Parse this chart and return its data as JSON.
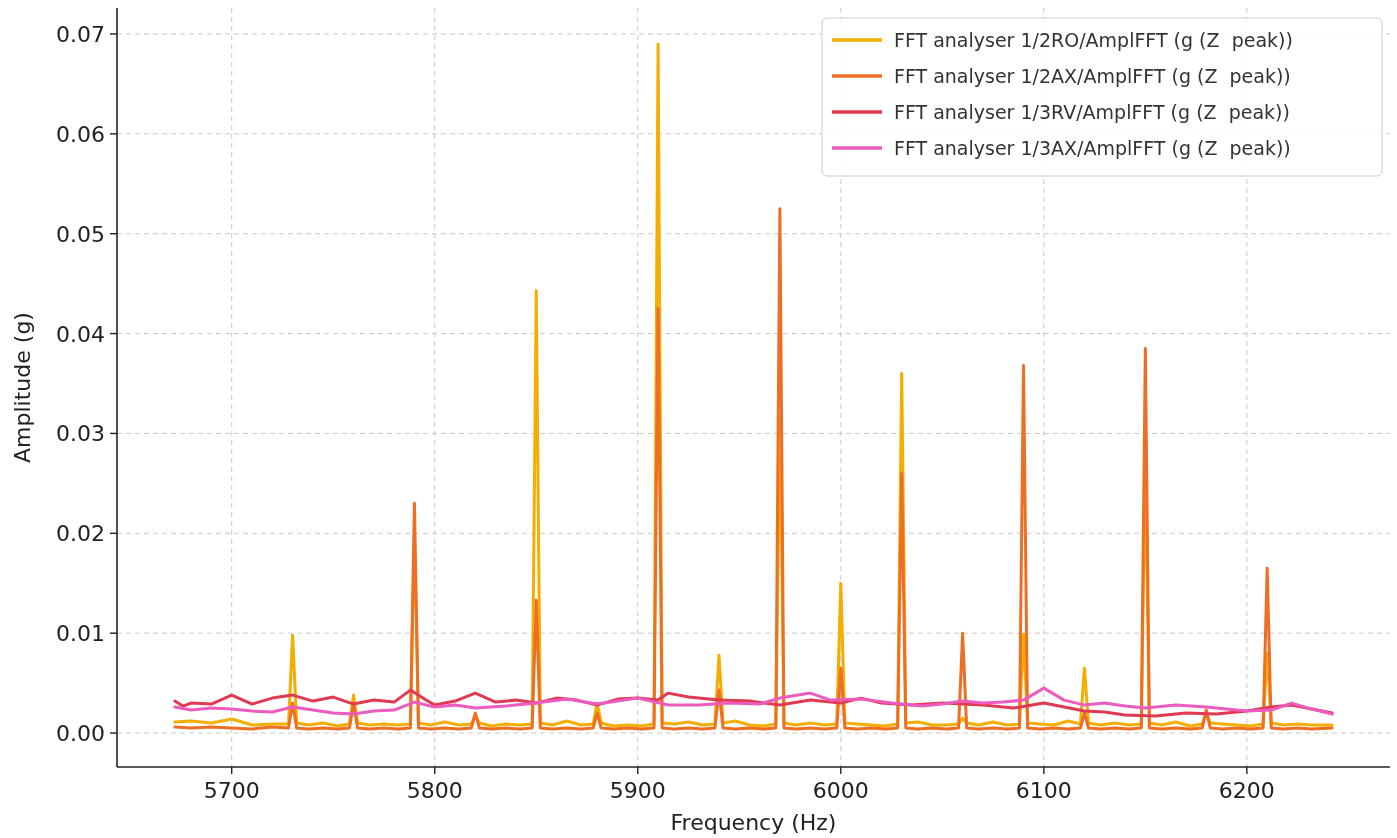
{
  "chart_data": {
    "type": "line",
    "xlabel": "Frequency (Hz)",
    "ylabel": "Amplitude (g)",
    "xlim": [
      5643.5,
      6270.5
    ],
    "xticks": [
      5700,
      5800,
      5900,
      6000,
      6100,
      6200
    ],
    "ylim": [
      -0.0034,
      0.0726
    ],
    "yticks": [
      {
        "value": 0,
        "label": "0.00"
      },
      {
        "value": 0.01,
        "label": "0.01"
      },
      {
        "value": 0.02,
        "label": "0.02"
      },
      {
        "value": 0.03,
        "label": "0.03"
      },
      {
        "value": 0.04,
        "label": "0.04"
      },
      {
        "value": 0.05,
        "label": "0.05"
      },
      {
        "value": 0.06,
        "label": "0.06"
      },
      {
        "value": 0.07,
        "label": "0.07"
      }
    ],
    "grid": true,
    "legend": "top right",
    "line_style": "solid",
    "marker": "none",
    "x": [
      5672,
      5680,
      5690,
      5700,
      5710,
      5720,
      5728,
      5730,
      5732,
      5738,
      5745,
      5752,
      5758,
      5760,
      5762,
      5768,
      5775,
      5782,
      5788,
      5790,
      5792,
      5798,
      5805,
      5812,
      5818,
      5820,
      5822,
      5828,
      5835,
      5842,
      5848,
      5850,
      5852,
      5858,
      5865,
      5872,
      5878,
      5880,
      5882,
      5888,
      5895,
      5902,
      5908,
      5910,
      5912,
      5918,
      5925,
      5932,
      5938,
      5940,
      5942,
      5948,
      5955,
      5962,
      5968,
      5970,
      5972,
      5978,
      5985,
      5992,
      5998,
      6000,
      6002,
      6008,
      6015,
      6022,
      6028,
      6030,
      6032,
      6038,
      6045,
      6052,
      6058,
      6060,
      6062,
      6068,
      6075,
      6082,
      6088,
      6090,
      6092,
      6098,
      6105,
      6112,
      6118,
      6120,
      6122,
      6128,
      6135,
      6142,
      6148,
      6150,
      6152,
      6158,
      6165,
      6172,
      6178,
      6180,
      6182,
      6188,
      6195,
      6202,
      6208,
      6210,
      6212,
      6218,
      6225,
      6232,
      6242
    ],
    "series": [
      {
        "name": "FFT analyser 1/2RO/AmplFFT (g (Z  peak))",
        "color": "#f5ad00",
        "values": [
          0.0011,
          0.0012,
          0.001,
          0.0014,
          0.0008,
          0.0009,
          0.0009,
          0.0098,
          0.001,
          0.0008,
          0.001,
          0.0007,
          0.0009,
          0.0038,
          0.001,
          0.0008,
          0.0009,
          0.0008,
          0.0009,
          0.02,
          0.001,
          0.0008,
          0.0011,
          0.0008,
          0.0009,
          0.0018,
          0.001,
          0.0007,
          0.0009,
          0.0008,
          0.0009,
          0.0443,
          0.001,
          0.0008,
          0.0012,
          0.0008,
          0.0009,
          0.003,
          0.001,
          0.0007,
          0.0008,
          0.0007,
          0.0009,
          0.069,
          0.001,
          0.0009,
          0.0011,
          0.0008,
          0.0009,
          0.0078,
          0.001,
          0.0012,
          0.0008,
          0.0007,
          0.0009,
          0.0315,
          0.001,
          0.0008,
          0.001,
          0.0008,
          0.0009,
          0.015,
          0.001,
          0.0009,
          0.0008,
          0.0007,
          0.0009,
          0.036,
          0.001,
          0.0011,
          0.0008,
          0.0008,
          0.0009,
          0.0015,
          0.001,
          0.0008,
          0.0011,
          0.0008,
          0.0009,
          0.0099,
          0.001,
          0.0009,
          0.0008,
          0.0012,
          0.0009,
          0.0065,
          0.001,
          0.0008,
          0.001,
          0.0008,
          0.0009,
          0.0275,
          0.001,
          0.0008,
          0.0011,
          0.0007,
          0.0009,
          0.002,
          0.001,
          0.0009,
          0.0008,
          0.0007,
          0.0009,
          0.008,
          0.001,
          0.0008,
          0.0009,
          0.0008,
          0.0008
        ]
      },
      {
        "name": "FFT analyser 1/2AX/AmplFFT (g (Z  peak))",
        "color": "#ee6f24",
        "values": [
          0.0006,
          0.0005,
          0.0006,
          0.0005,
          0.0004,
          0.0006,
          0.0005,
          0.003,
          0.0005,
          0.0004,
          0.0005,
          0.0004,
          0.0005,
          0.003,
          0.0005,
          0.0004,
          0.0005,
          0.0004,
          0.0005,
          0.023,
          0.0005,
          0.0004,
          0.0005,
          0.0004,
          0.0005,
          0.002,
          0.0005,
          0.0004,
          0.0005,
          0.0004,
          0.0005,
          0.0133,
          0.0005,
          0.0004,
          0.0005,
          0.0004,
          0.0005,
          0.002,
          0.0005,
          0.0004,
          0.0005,
          0.0004,
          0.0005,
          0.0425,
          0.0005,
          0.0004,
          0.0005,
          0.0004,
          0.0005,
          0.0043,
          0.0005,
          0.0004,
          0.0005,
          0.0004,
          0.0005,
          0.0525,
          0.0005,
          0.0004,
          0.0005,
          0.0004,
          0.0005,
          0.0065,
          0.0005,
          0.0004,
          0.0005,
          0.0004,
          0.0005,
          0.026,
          0.0005,
          0.0004,
          0.0005,
          0.0004,
          0.0005,
          0.01,
          0.0005,
          0.0004,
          0.0005,
          0.0004,
          0.0005,
          0.0368,
          0.0005,
          0.0004,
          0.0005,
          0.0004,
          0.0005,
          0.002,
          0.0005,
          0.0004,
          0.0005,
          0.0004,
          0.0005,
          0.0385,
          0.0005,
          0.0004,
          0.0005,
          0.0004,
          0.0005,
          0.0023,
          0.0005,
          0.0004,
          0.0005,
          0.0004,
          0.0005,
          0.0165,
          0.0005,
          0.0004,
          0.0005,
          0.0004,
          0.0005
        ]
      },
      {
        "name": "FFT analyser 1/3RV/AmplFFT (g (Z  peak))",
        "color": "#e03a52",
        "x": [
          5672,
          5676,
          5680,
          5690,
          5700,
          5710,
          5720,
          5730,
          5740,
          5750,
          5760,
          5770,
          5780,
          5788,
          5795,
          5800,
          5810,
          5820,
          5830,
          5840,
          5850,
          5860,
          5870,
          5880,
          5890,
          5900,
          5910,
          5915,
          5925,
          5940,
          5955,
          5970,
          5985,
          6000,
          6010,
          6020,
          6035,
          6050,
          6070,
          6085,
          6100,
          6110,
          6120,
          6130,
          6140,
          6155,
          6170,
          6185,
          6200,
          6212,
          6222,
          6232,
          6242
        ],
        "values": [
          0.0032,
          0.0027,
          0.003,
          0.0029,
          0.0038,
          0.0029,
          0.0035,
          0.0038,
          0.0032,
          0.0036,
          0.0029,
          0.0033,
          0.0031,
          0.0043,
          0.0034,
          0.0028,
          0.0032,
          0.004,
          0.0031,
          0.0033,
          0.003,
          0.0035,
          0.0033,
          0.0028,
          0.0034,
          0.0035,
          0.0033,
          0.004,
          0.0036,
          0.0033,
          0.0032,
          0.0028,
          0.0033,
          0.003,
          0.0035,
          0.003,
          0.0028,
          0.003,
          0.0028,
          0.0025,
          0.003,
          0.0026,
          0.0022,
          0.0021,
          0.0018,
          0.0017,
          0.002,
          0.0019,
          0.0022,
          0.0026,
          0.0028,
          0.0024,
          0.002
        ]
      },
      {
        "name": "FFT analyser 1/3AX/AmplFFT (g (Z  peak))",
        "color": "#ec5cbf",
        "x": [
          5672,
          5680,
          5690,
          5700,
          5710,
          5720,
          5730,
          5740,
          5750,
          5760,
          5770,
          5780,
          5790,
          5800,
          5810,
          5820,
          5835,
          5850,
          5865,
          5880,
          5900,
          5915,
          5930,
          5945,
          5960,
          5970,
          5985,
          5995,
          6010,
          6025,
          6040,
          6050,
          6060,
          6070,
          6080,
          6090,
          6100,
          6110,
          6120,
          6130,
          6140,
          6150,
          6165,
          6180,
          6200,
          6212,
          6222,
          6232,
          6242
        ],
        "values": [
          0.0026,
          0.0023,
          0.0025,
          0.0024,
          0.0022,
          0.0021,
          0.0026,
          0.0023,
          0.002,
          0.0019,
          0.0022,
          0.0023,
          0.0031,
          0.0026,
          0.0028,
          0.0025,
          0.0027,
          0.003,
          0.0034,
          0.0029,
          0.0035,
          0.0028,
          0.0028,
          0.003,
          0.0029,
          0.0035,
          0.004,
          0.0033,
          0.0034,
          0.003,
          0.0027,
          0.0029,
          0.0032,
          0.003,
          0.0031,
          0.0033,
          0.0045,
          0.0033,
          0.0028,
          0.003,
          0.0027,
          0.0025,
          0.0028,
          0.0026,
          0.0022,
          0.0023,
          0.003,
          0.0024,
          0.0019
        ]
      }
    ]
  }
}
